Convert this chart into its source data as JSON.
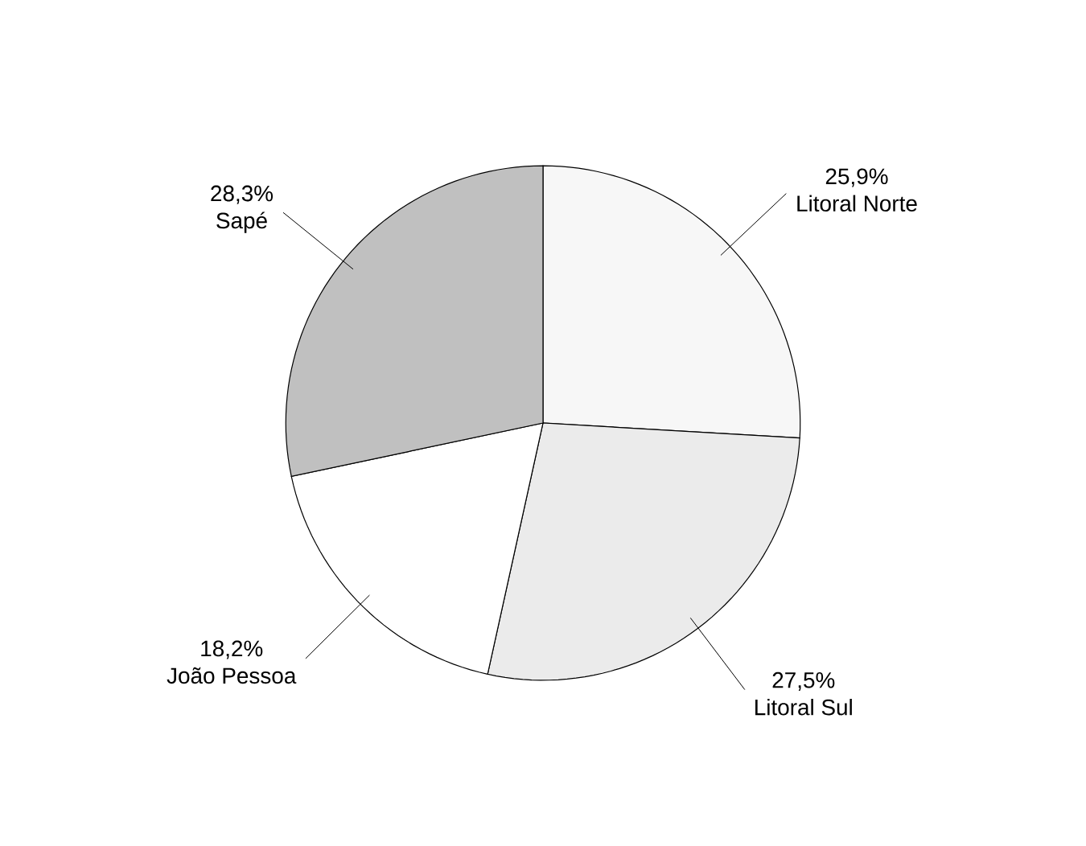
{
  "chart_data": {
    "type": "pie",
    "categories": [
      "Litoral Norte",
      "Litoral Sul",
      "João Pessoa",
      "Sapé"
    ],
    "values": [
      25.9,
      27.5,
      18.2,
      28.3
    ],
    "value_labels": [
      "25,9%",
      "27,5%",
      "18,2%",
      "28,3%"
    ],
    "colors": [
      "#f7f7f7",
      "#ebebeb",
      "#ffffff",
      "#c0c0c0"
    ]
  }
}
